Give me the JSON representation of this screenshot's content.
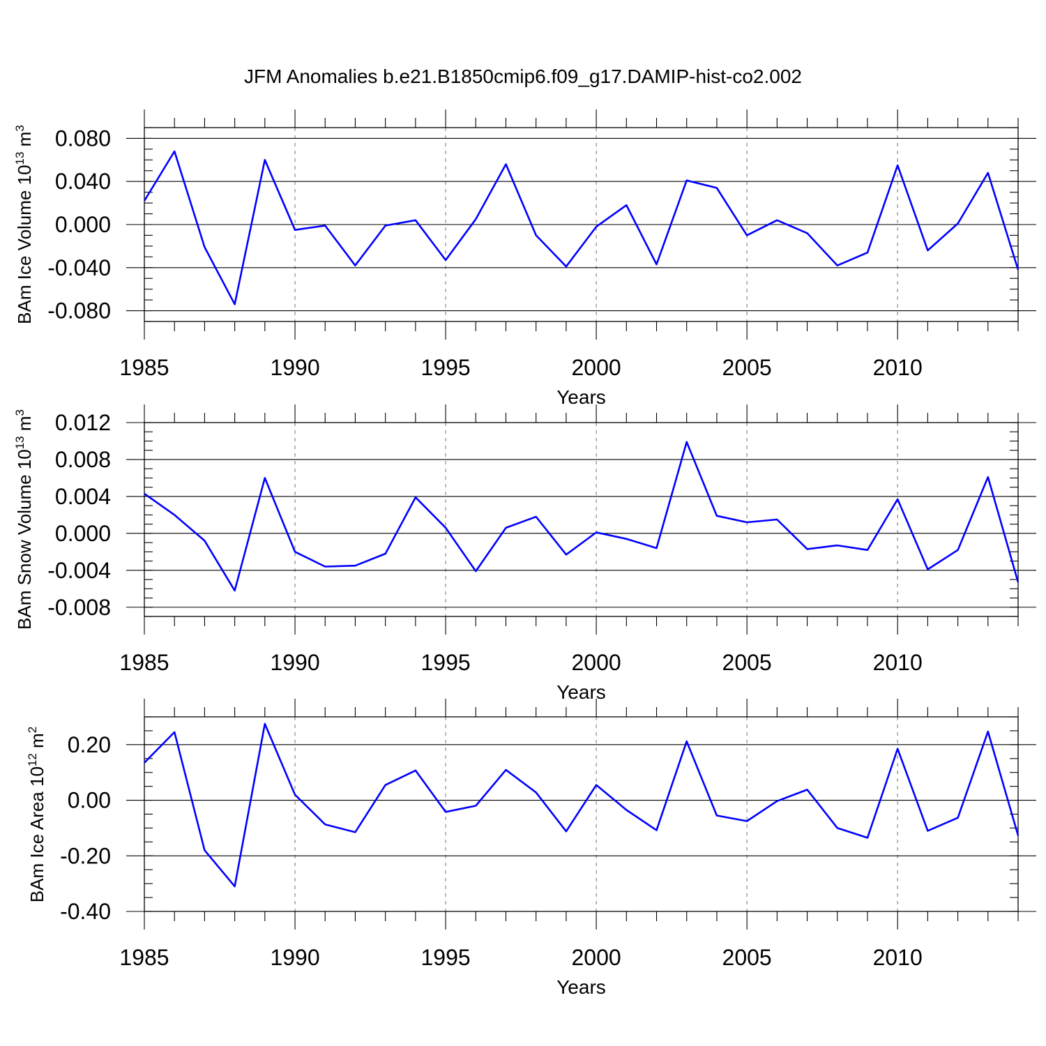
{
  "figure_title": "JFM Anomalies b.e21.B1850cmip6.f09_g17.DAMIP-hist-co2.002",
  "colors": {
    "line": "#0000ff",
    "grid": "#888888",
    "axes": "#000000"
  },
  "chart_data": [
    {
      "type": "line",
      "title": "",
      "xlabel": "Years",
      "ylabel": {
        "base": "BAm Ice Volume 10",
        "exp": "13",
        "unit": " m",
        "unit_exp": "3"
      },
      "xlim": [
        1985,
        2014
      ],
      "ylim": [
        -0.09,
        0.09
      ],
      "yticks": [
        -0.08,
        -0.04,
        0.0,
        0.04,
        0.08
      ],
      "yticklabels": [
        "-0.080",
        "-0.040",
        "0.000",
        "0.040",
        "0.080"
      ],
      "yminor": 0.01,
      "xticks": [
        1985,
        1990,
        1995,
        2000,
        2005,
        2010
      ],
      "xticklabels": [
        "1985",
        "1990",
        "1995",
        "2000",
        "2005",
        "2010"
      ],
      "grid_x": [
        1990,
        1995,
        2000,
        2005,
        2010
      ],
      "x": [
        1985,
        1986,
        1987,
        1988,
        1989,
        1990,
        1991,
        1992,
        1993,
        1994,
        1995,
        1996,
        1997,
        1998,
        1999,
        2000,
        2001,
        2002,
        2003,
        2004,
        2005,
        2006,
        2007,
        2008,
        2009,
        2010,
        2011,
        2012,
        2013,
        2014
      ],
      "series": [
        {
          "name": "BAm Ice Volume",
          "values": [
            0.022,
            0.068,
            -0.021,
            -0.074,
            0.06,
            -0.005,
            -0.001,
            -0.038,
            -0.001,
            0.004,
            -0.033,
            0.005,
            0.056,
            -0.01,
            -0.039,
            -0.002,
            0.018,
            -0.037,
            0.041,
            0.034,
            -0.01,
            0.004,
            -0.008,
            -0.038,
            -0.026,
            0.055,
            -0.024,
            0.001,
            0.048,
            -0.042
          ]
        }
      ]
    },
    {
      "type": "line",
      "title": "",
      "xlabel": "Years",
      "ylabel": {
        "base": "BAm Snow Volume 10",
        "exp": "13",
        "unit": " m",
        "unit_exp": "3"
      },
      "xlim": [
        1985,
        2014
      ],
      "ylim": [
        -0.009,
        0.012
      ],
      "yticks": [
        -0.008,
        -0.004,
        0.0,
        0.004,
        0.008,
        0.012
      ],
      "yticklabels": [
        "-0.008",
        "-0.004",
        "0.000",
        "0.004",
        "0.008",
        "0.012"
      ],
      "yminor": 0.001,
      "xticks": [
        1985,
        1990,
        1995,
        2000,
        2005,
        2010
      ],
      "xticklabels": [
        "1985",
        "1990",
        "1995",
        "2000",
        "2005",
        "2010"
      ],
      "grid_x": [
        1990,
        1995,
        2000,
        2005,
        2010
      ],
      "x": [
        1985,
        1986,
        1987,
        1988,
        1989,
        1990,
        1991,
        1992,
        1993,
        1994,
        1995,
        1996,
        1997,
        1998,
        1999,
        2000,
        2001,
        2002,
        2003,
        2004,
        2005,
        2006,
        2007,
        2008,
        2009,
        2010,
        2011,
        2012,
        2013,
        2014
      ],
      "series": [
        {
          "name": "BAm Snow Volume",
          "values": [
            0.0043,
            0.002,
            -0.0008,
            -0.0062,
            0.006,
            -0.002,
            -0.0036,
            -0.0035,
            -0.0022,
            0.0039,
            0.0006,
            -0.0041,
            0.0006,
            0.0018,
            -0.0023,
            0.0001,
            -0.0006,
            -0.0016,
            0.0099,
            0.0019,
            0.0012,
            0.0015,
            -0.0017,
            -0.0013,
            -0.0018,
            0.0037,
            -0.0039,
            -0.0018,
            0.0061,
            -0.0053
          ]
        }
      ]
    },
    {
      "type": "line",
      "title": "",
      "xlabel": "Years",
      "ylabel": {
        "base": "BAm Ice Area 10",
        "exp": "12",
        "unit": " m",
        "unit_exp": "2"
      },
      "xlim": [
        1985,
        2014
      ],
      "ylim": [
        -0.4,
        0.3
      ],
      "yticks": [
        -0.4,
        -0.2,
        0.0,
        0.2
      ],
      "yticklabels": [
        "-0.40",
        "-0.20",
        "0.00",
        "0.20"
      ],
      "yminor": 0.05,
      "xticks": [
        1985,
        1990,
        1995,
        2000,
        2005,
        2010
      ],
      "xticklabels": [
        "1985",
        "1990",
        "1995",
        "2000",
        "2005",
        "2010"
      ],
      "grid_x": [
        1990,
        1995,
        2000,
        2005,
        2010
      ],
      "x": [
        1985,
        1986,
        1987,
        1988,
        1989,
        1990,
        1991,
        1992,
        1993,
        1994,
        1995,
        1996,
        1997,
        1998,
        1999,
        2000,
        2001,
        2002,
        2003,
        2004,
        2005,
        2006,
        2007,
        2008,
        2009,
        2010,
        2011,
        2012,
        2013,
        2014
      ],
      "series": [
        {
          "name": "BAm Ice Area",
          "values": [
            0.135,
            0.245,
            -0.18,
            -0.31,
            0.275,
            0.02,
            -0.087,
            -0.115,
            0.055,
            0.107,
            -0.042,
            -0.02,
            0.109,
            0.028,
            -0.112,
            0.055,
            -0.035,
            -0.108,
            0.212,
            -0.055,
            -0.075,
            -0.003,
            0.038,
            -0.1,
            -0.135,
            0.185,
            -0.11,
            -0.063,
            0.247,
            -0.127
          ]
        }
      ]
    }
  ]
}
